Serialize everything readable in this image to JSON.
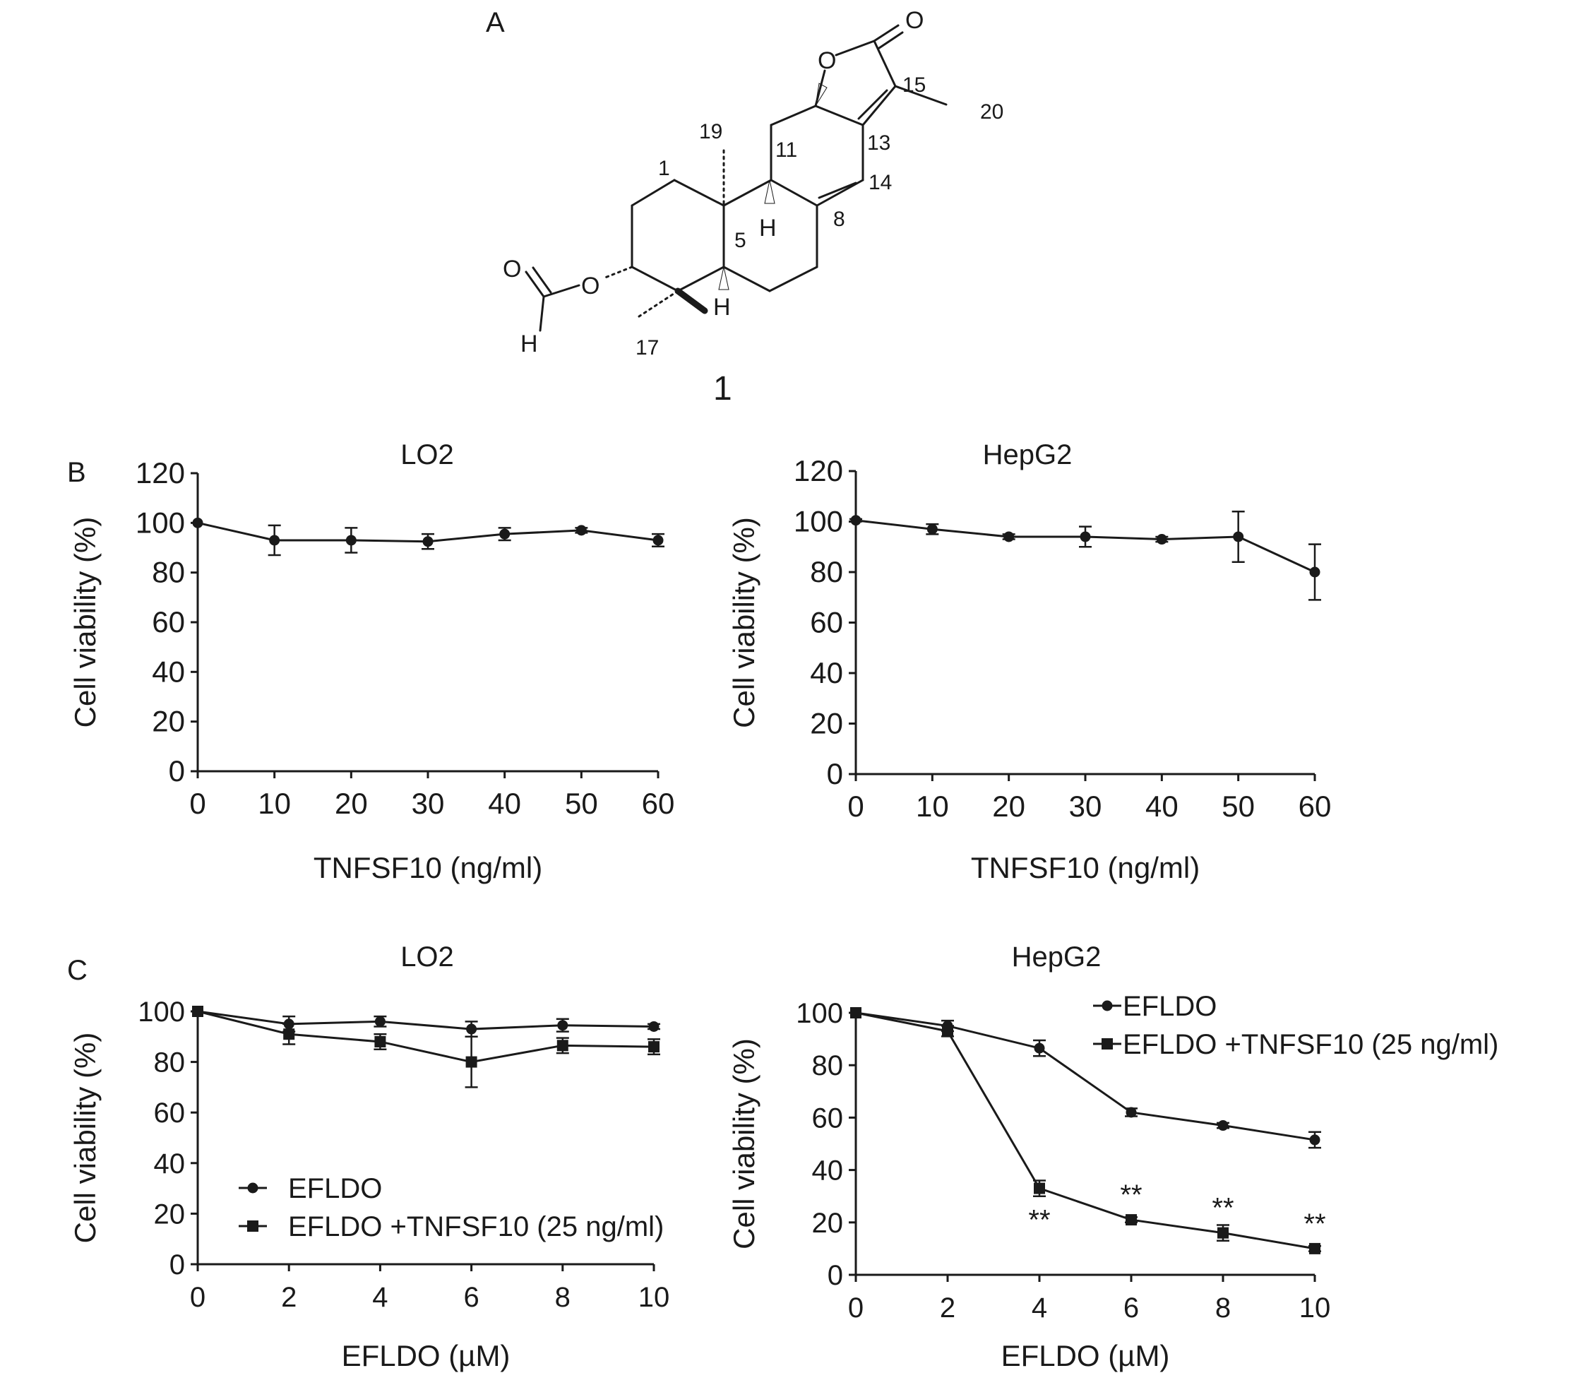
{
  "panels": {
    "A": "A",
    "B": "B",
    "C": "C"
  },
  "structure": {
    "compound_number": "1",
    "atoms": {
      "carbonyl_o": "O",
      "ring_o": "O",
      "formyl_o": "O",
      "ester_o": "O",
      "formyl_h": "H",
      "h9": "H",
      "h5": "H"
    },
    "numbering": {
      "c1": "1",
      "c5": "5",
      "c8": "8",
      "c11": "11",
      "c13": "13",
      "c14": "14",
      "c15": "15",
      "c17": "17",
      "c19": "19",
      "c20": "20"
    }
  },
  "chart_data": [
    {
      "id": "B-LO2",
      "type": "line",
      "title": "LO2",
      "xlabel": "TNFSF10 (ng/ml)",
      "ylabel": "Cell viability (%)",
      "xlim": [
        0,
        60
      ],
      "ylim": [
        0,
        120
      ],
      "xticks": [
        0,
        10,
        20,
        30,
        40,
        50,
        60
      ],
      "yticks": [
        0,
        20,
        40,
        60,
        80,
        100,
        120
      ],
      "grid": false,
      "series": [
        {
          "marker": "circle",
          "x": [
            0,
            10,
            20,
            30,
            40,
            50,
            60
          ],
          "values": [
            100,
            93,
            93,
            92.5,
            95.5,
            97,
            93
          ],
          "error": [
            0,
            6,
            5,
            3,
            2.5,
            1,
            2.5
          ]
        }
      ]
    },
    {
      "id": "B-HepG2",
      "type": "line",
      "title": "HepG2",
      "xlabel": "TNFSF10 (ng/ml)",
      "ylabel": "Cell viability (%)",
      "xlim": [
        0,
        60
      ],
      "ylim": [
        0,
        120
      ],
      "xticks": [
        0,
        10,
        20,
        30,
        40,
        50,
        60
      ],
      "yticks": [
        0,
        20,
        40,
        60,
        80,
        100,
        120
      ],
      "grid": false,
      "series": [
        {
          "marker": "circle",
          "x": [
            0,
            10,
            20,
            30,
            40,
            50,
            60
          ],
          "values": [
            100.5,
            97,
            94,
            94,
            93,
            94,
            80
          ],
          "error": [
            0.5,
            2,
            1,
            4,
            1,
            10,
            11
          ]
        }
      ]
    },
    {
      "id": "C-LO2",
      "type": "line",
      "title": "LO2",
      "xlabel": "EFLDO (µM)",
      "ylabel": "Cell viability (%)",
      "xlim": [
        0,
        10
      ],
      "ylim": [
        0,
        100
      ],
      "xticks": [
        0,
        2,
        4,
        6,
        8,
        10
      ],
      "yticks": [
        0,
        20,
        40,
        60,
        80,
        100
      ],
      "grid": false,
      "legend": "bottom-left",
      "series": [
        {
          "name": "EFLDO",
          "marker": "circle",
          "x": [
            0,
            2,
            4,
            6,
            8,
            10
          ],
          "values": [
            100,
            95,
            96,
            93,
            94.5,
            94
          ],
          "error": [
            0,
            3,
            2,
            3,
            2.5,
            1
          ]
        },
        {
          "name": "EFLDO +TNFSF10 (25 ng/ml)",
          "marker": "square",
          "x": [
            0,
            2,
            4,
            6,
            8,
            10
          ],
          "values": [
            100,
            91,
            88,
            80,
            86.5,
            86
          ],
          "error": [
            0,
            4,
            3,
            10,
            3,
            3
          ]
        }
      ]
    },
    {
      "id": "C-HepG2",
      "type": "line",
      "title": "HepG2",
      "xlabel": "EFLDO (µM)",
      "ylabel": "Cell viability (%)",
      "xlim": [
        0,
        10
      ],
      "ylim": [
        0,
        100
      ],
      "xticks": [
        0,
        2,
        4,
        6,
        8,
        10
      ],
      "yticks": [
        0,
        20,
        40,
        60,
        80,
        100
      ],
      "grid": false,
      "legend": "top-right",
      "annotations": [
        "**",
        "**",
        "**",
        "**"
      ],
      "annotation_x": [
        4,
        6,
        8,
        10
      ],
      "series": [
        {
          "name": "EFLDO",
          "marker": "circle",
          "x": [
            0,
            2,
            4,
            6,
            8,
            10
          ],
          "values": [
            100,
            95,
            86.5,
            62,
            57,
            51.5
          ],
          "error": [
            0,
            2,
            3,
            1.5,
            1,
            3
          ]
        },
        {
          "name": "EFLDO +TNFSF10 (25 ng/ml)",
          "marker": "square",
          "x": [
            0,
            2,
            4,
            6,
            8,
            10
          ],
          "values": [
            100,
            93,
            33,
            21,
            16,
            10
          ],
          "error": [
            0,
            2,
            3,
            1,
            3,
            1
          ]
        }
      ]
    }
  ]
}
